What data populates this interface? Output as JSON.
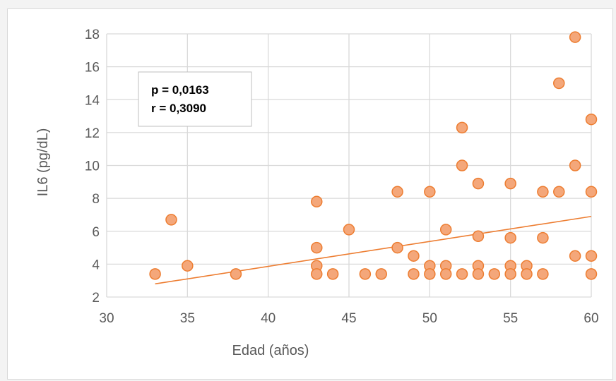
{
  "chart_data": {
    "type": "scatter",
    "title": "",
    "xlabel": "Edad (años)",
    "ylabel": "IL6 (pg/dL)",
    "xlim": [
      30,
      60
    ],
    "ylim": [
      2,
      18
    ],
    "x_ticks": [
      30,
      35,
      40,
      45,
      50,
      55,
      60
    ],
    "y_ticks": [
      2,
      4,
      6,
      8,
      10,
      12,
      14,
      16,
      18
    ],
    "grid": true,
    "legend": "none",
    "annotations": [
      "p = 0,0163",
      "r = 0,3090"
    ],
    "trendline": {
      "type": "linear",
      "x": [
        33,
        60
      ],
      "y": [
        2.8,
        6.9
      ]
    },
    "colors": {
      "marker_fill": "#f4a77a",
      "marker_stroke": "#ed7d31",
      "trendline": "#ed7d31",
      "grid": "#d9d9d9"
    },
    "series": [
      {
        "x": [
          33,
          34,
          35,
          38,
          43,
          43,
          43,
          43,
          44,
          45,
          46,
          47,
          48,
          48,
          49,
          49,
          50,
          50,
          50,
          51,
          51,
          51,
          52,
          52,
          52,
          53,
          53,
          53,
          53,
          54,
          55,
          55,
          55,
          55,
          56,
          56,
          57,
          57,
          57,
          58,
          58,
          59,
          59,
          59,
          60,
          60,
          60,
          60
        ],
        "y": [
          3.4,
          6.7,
          3.9,
          3.4,
          7.8,
          5.0,
          3.9,
          3.4,
          3.4,
          6.1,
          3.4,
          3.4,
          8.4,
          5.0,
          4.5,
          3.4,
          8.4,
          3.9,
          3.4,
          6.1,
          3.9,
          3.4,
          12.3,
          10.0,
          3.4,
          8.9,
          5.7,
          3.9,
          3.4,
          3.4,
          8.9,
          5.6,
          3.9,
          3.4,
          3.9,
          3.4,
          8.4,
          5.6,
          3.4,
          15.0,
          8.4,
          17.8,
          10.0,
          4.5,
          12.8,
          8.4,
          4.5,
          3.4
        ]
      }
    ]
  }
}
